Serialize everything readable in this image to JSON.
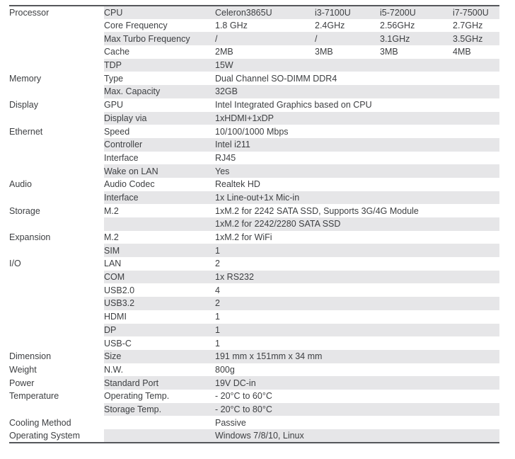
{
  "colors": {
    "frame": "#55575b",
    "row_line": "#b4b5b8",
    "stripe": "#e6e6e8",
    "text": "#3e4043"
  },
  "table": {
    "rows": [
      {
        "category": "Processor",
        "attribute": "CPU",
        "values": [
          "Celeron3865U",
          "i3-7100U",
          "i5-7200U",
          "i7-7500U"
        ]
      },
      {
        "category": "",
        "attribute": "Core Frequency",
        "values": [
          "1.8 GHz",
          "2.4GHz",
          "2.56GHz",
          "2.7GHz"
        ]
      },
      {
        "category": "",
        "attribute": "Max Turbo Frequency",
        "values": [
          "/",
          "/",
          "3.1GHz",
          "3.5GHz"
        ]
      },
      {
        "category": "",
        "attribute": "Cache",
        "values": [
          "2MB",
          "3MB",
          "3MB",
          "4MB"
        ]
      },
      {
        "category": "",
        "attribute": "TDP",
        "values": [
          "15W"
        ]
      },
      {
        "category": "Memory",
        "attribute": "Type",
        "values": [
          "Dual Channel SO-DIMM DDR4"
        ]
      },
      {
        "category": "",
        "attribute": "Max. Capacity",
        "values": [
          "32GB"
        ]
      },
      {
        "category": "Display",
        "attribute": "GPU",
        "values": [
          "Intel Integrated Graphics based on CPU"
        ]
      },
      {
        "category": "",
        "attribute": "Display via",
        "values": [
          "1xHDMI+1xDP"
        ]
      },
      {
        "category": "Ethernet",
        "attribute": "Speed",
        "values": [
          "10/100/1000 Mbps"
        ]
      },
      {
        "category": "",
        "attribute": "Controller",
        "values": [
          "Intel i211"
        ]
      },
      {
        "category": "",
        "attribute": "Interface",
        "values": [
          "RJ45"
        ]
      },
      {
        "category": "",
        "attribute": "Wake on LAN",
        "values": [
          "Yes"
        ]
      },
      {
        "category": "Audio",
        "attribute": "Audio Codec",
        "values": [
          "Realtek HD"
        ]
      },
      {
        "category": "",
        "attribute": "Interface",
        "values": [
          "1x Line-out+1x Mic-in"
        ]
      },
      {
        "category": "Storage",
        "attribute": "M.2",
        "values": [
          "1xM.2 for 2242 SATA SSD, Supports 3G/4G Module"
        ]
      },
      {
        "category": "",
        "attribute": "",
        "values": [
          "1xM.2 for 2242/2280 SATA SSD"
        ]
      },
      {
        "category": "Expansion",
        "attribute": "M.2",
        "values": [
          "1xM.2 for WiFi"
        ]
      },
      {
        "category": "",
        "attribute": "SIM",
        "values": [
          "1"
        ]
      },
      {
        "category": "I/O",
        "attribute": "LAN",
        "values": [
          "2"
        ]
      },
      {
        "category": "",
        "attribute": "COM",
        "values": [
          "1x RS232"
        ]
      },
      {
        "category": "",
        "attribute": "USB2.0",
        "values": [
          "4"
        ]
      },
      {
        "category": "",
        "attribute": "USB3.2",
        "values": [
          "2"
        ]
      },
      {
        "category": "",
        "attribute": "HDMI",
        "values": [
          "1"
        ]
      },
      {
        "category": "",
        "attribute": "DP",
        "values": [
          "1"
        ]
      },
      {
        "category": "",
        "attribute": "USB-C",
        "values": [
          "1"
        ]
      },
      {
        "category": "Dimension",
        "attribute": "Size",
        "values": [
          "191 mm x 151mm x 34 mm"
        ]
      },
      {
        "category": "Weight",
        "attribute": "N.W.",
        "values": [
          "800g"
        ]
      },
      {
        "category": "Power",
        "attribute": "Standard Port",
        "values": [
          "19V DC-in"
        ]
      },
      {
        "category": "Temperature",
        "attribute": "Operating Temp.",
        "values": [
          "- 20°C to 60°C"
        ]
      },
      {
        "category": "",
        "attribute": "Storage Temp.",
        "values": [
          "- 20°C to 80°C"
        ]
      },
      {
        "category": "Cooling Method",
        "attribute": "",
        "values": [
          "Passive"
        ]
      },
      {
        "category": "Operating System",
        "attribute": "",
        "values": [
          "Windows 7/8/10, Linux"
        ]
      }
    ]
  }
}
